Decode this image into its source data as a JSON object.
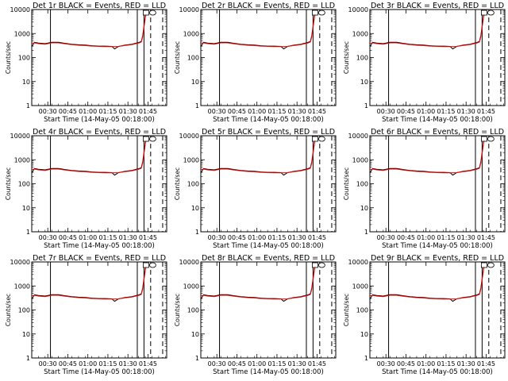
{
  "figure": {
    "panels": [
      {
        "title": "Det 1r  BLACK = Events, RED = LLD"
      },
      {
        "title": "Det 2r  BLACK = Events, RED = LLD"
      },
      {
        "title": "Det 3r  BLACK = Events, RED = LLD"
      },
      {
        "title": "Det 4r  BLACK = Events, RED = LLD"
      },
      {
        "title": "Det 5r  BLACK = Events, RED = LLD"
      },
      {
        "title": "Det 6r  BLACK = Events, RED = LLD"
      },
      {
        "title": "Det 7r  BLACK = Events, RED = LLD"
      },
      {
        "title": "Det 8r  BLACK = Events, RED = LLD"
      },
      {
        "title": "Det 9r  BLACK = Events, RED = LLD"
      }
    ],
    "xlabel": "Start Time (14-May-05 00:18:00)",
    "ylabel": "Counts/sec",
    "xtick_labels": [
      "00:30",
      "00:45",
      "01:00",
      "01:15",
      "01:30",
      "01:45"
    ],
    "ytick_labels": [
      "1",
      "10",
      "100",
      "1000",
      "10000"
    ]
  },
  "chart_data": {
    "type": "line",
    "panel_count": 9,
    "x_unit": "minutes after 00:18:00 on 14-May-05",
    "xlim": [
      0,
      101
    ],
    "ylim": [
      1,
      10000
    ],
    "yscale": "log",
    "grid": false,
    "xticks": [
      12,
      27,
      42,
      57,
      72,
      87
    ],
    "yticks": [
      1,
      10,
      100,
      1000,
      10000
    ],
    "series": [
      {
        "name": "Events",
        "color": "#000000",
        "x": [
          0,
          2,
          5,
          10,
          15,
          20,
          25,
          30,
          35,
          40,
          45,
          50,
          55,
          60,
          62,
          65,
          70,
          75,
          78,
          80,
          82,
          83,
          84,
          85,
          86,
          87
        ],
        "y": [
          280,
          430,
          400,
          380,
          430,
          430,
          390,
          360,
          340,
          330,
          310,
          300,
          300,
          290,
          230,
          290,
          330,
          360,
          400,
          420,
          470,
          800,
          2000,
          5000,
          9000,
          10000
        ]
      },
      {
        "name": "LLD",
        "color": "#ff0000",
        "x": [
          0,
          2,
          5,
          10,
          15,
          20,
          25,
          30,
          35,
          40,
          45,
          50,
          55,
          60,
          65,
          70,
          75,
          78,
          80,
          82,
          83,
          84,
          85,
          86,
          87
        ],
        "y": [
          390,
          410,
          380,
          360,
          410,
          410,
          370,
          345,
          325,
          315,
          300,
          290,
          285,
          285,
          290,
          320,
          345,
          380,
          400,
          440,
          700,
          1800,
          4500,
          8500,
          10000
        ]
      }
    ],
    "vertical_lines": [
      {
        "x": 14,
        "style": "solid"
      },
      {
        "x": 79,
        "style": "solid"
      },
      {
        "x": 84,
        "style": "solid"
      },
      {
        "x": 89,
        "style": "dashed"
      },
      {
        "x": 98,
        "style": "dashed"
      }
    ]
  }
}
